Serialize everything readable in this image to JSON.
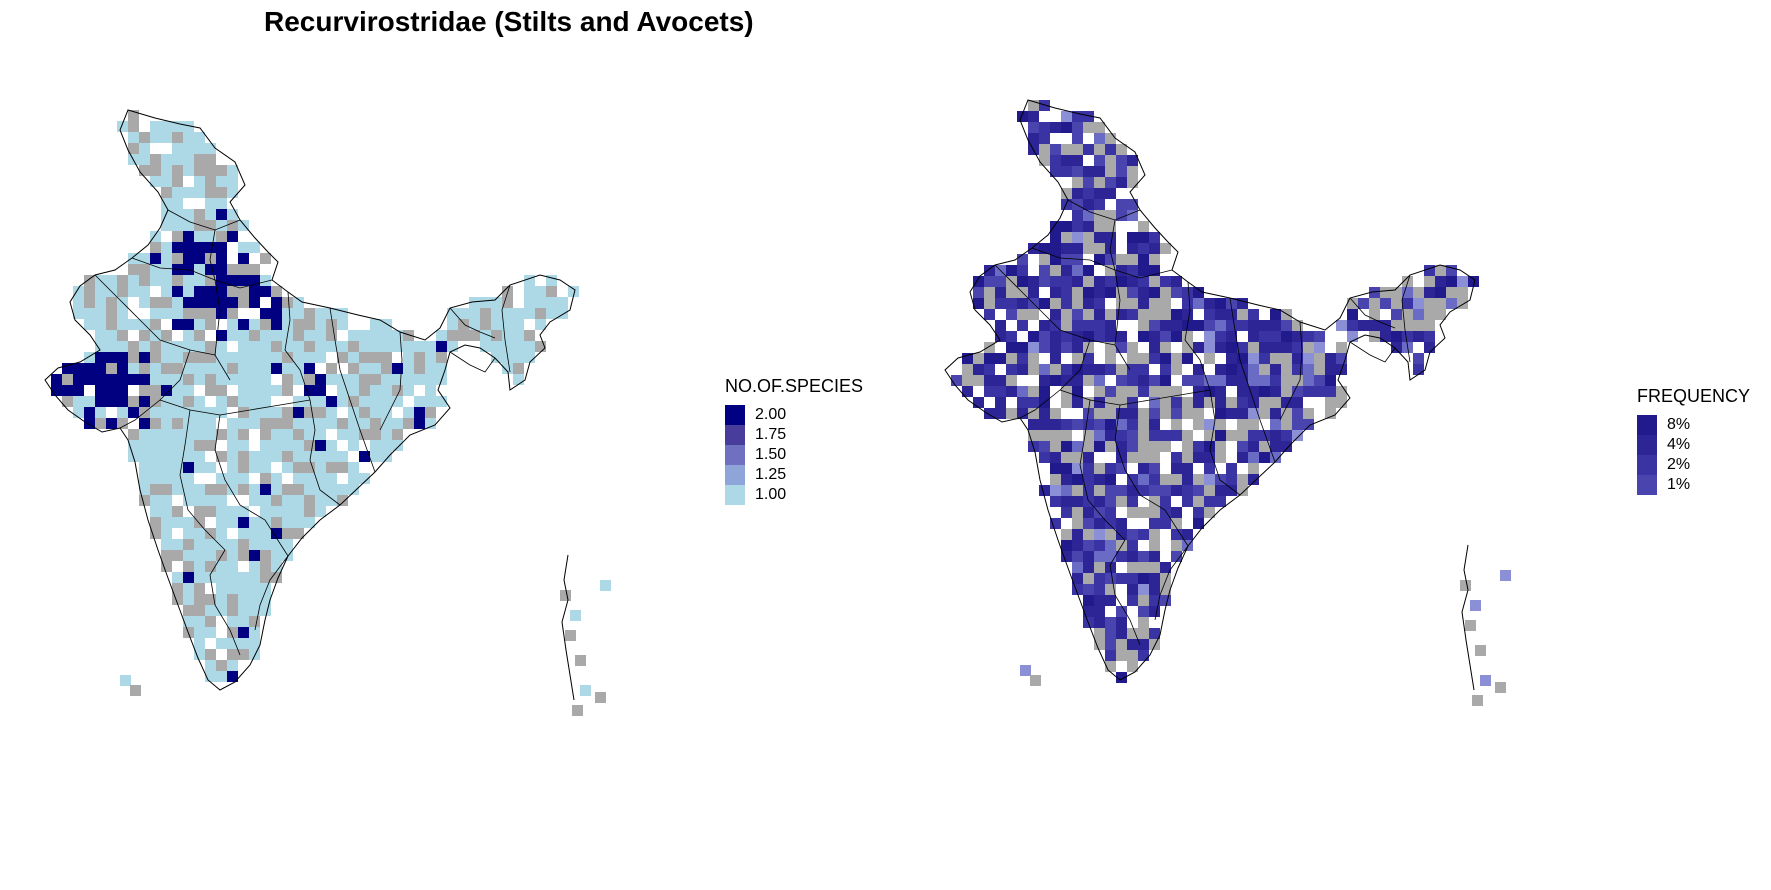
{
  "title": "Recurvirostridae (Stilts and Avocets)",
  "colors": {
    "no_data": "#a9a9a9",
    "boundary": "#000000"
  },
  "left_legend": {
    "title": "NO.OF.SPECIES",
    "entries": [
      {
        "label": "2.00",
        "color": "#000080"
      },
      {
        "label": "1.75",
        "color": "#483d9b"
      },
      {
        "label": "1.50",
        "color": "#6f70c0"
      },
      {
        "label": "1.25",
        "color": "#8fa4d8"
      },
      {
        "label": "1.00",
        "color": "#add8e6"
      }
    ]
  },
  "right_legend": {
    "title": "FREQUENCY",
    "entries": [
      {
        "label": "8%",
        "color": "#201a8c"
      },
      {
        "label": "4%",
        "color": "#2d2596"
      },
      {
        "label": "2%",
        "color": "#3a33a3"
      },
      {
        "label": "1%",
        "color": "#4a44ae"
      }
    ]
  }
}
